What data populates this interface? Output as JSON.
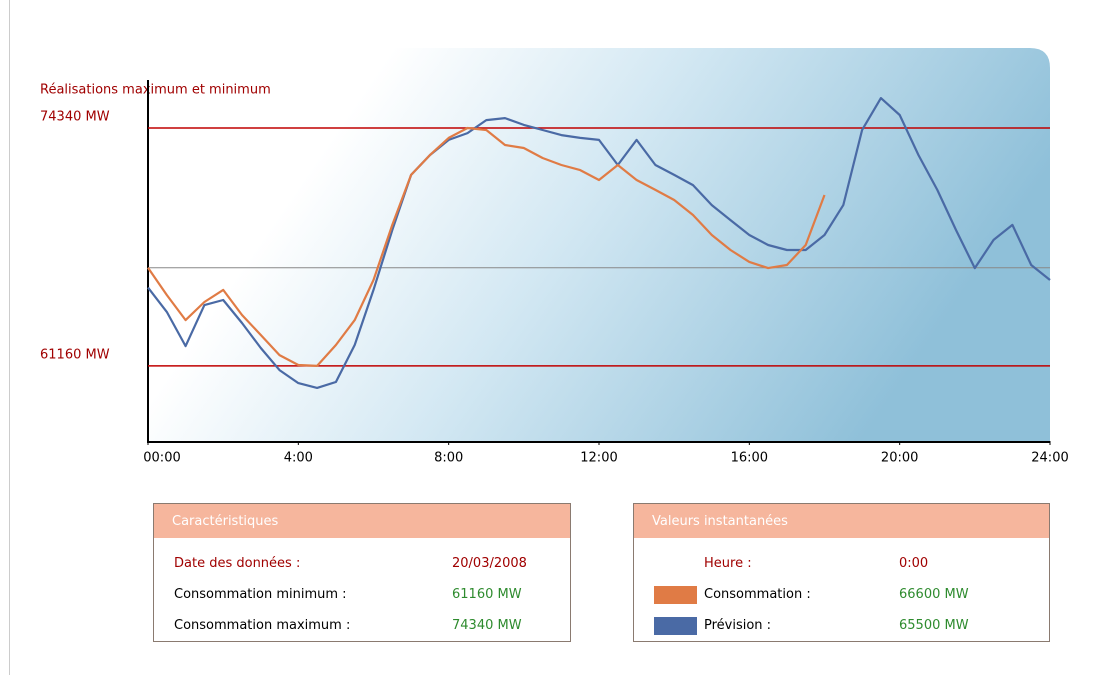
{
  "chart_data": {
    "type": "line",
    "title": "Réalisations maximum et minimum",
    "x": [
      0,
      0.5,
      1,
      1.5,
      2,
      2.5,
      3,
      3.5,
      4,
      4.5,
      5,
      5.5,
      6,
      6.5,
      7,
      7.5,
      8,
      8.5,
      9,
      9.5,
      10,
      10.5,
      11,
      11.5,
      12,
      12.5,
      13,
      13.5,
      14,
      14.5,
      15,
      15.5,
      16,
      16.5,
      17,
      17.5,
      18,
      18.5,
      19,
      19.5,
      20,
      20.5,
      21,
      21.5,
      22,
      22.5,
      23,
      23.5,
      24
    ],
    "xlim": [
      0,
      24
    ],
    "xticks": [
      {
        "value": 0,
        "label": "00:00"
      },
      {
        "value": 4,
        "label": "4:00"
      },
      {
        "value": 8,
        "label": "8:00"
      },
      {
        "value": 12,
        "label": "12:00"
      },
      {
        "value": 16,
        "label": "16:00"
      },
      {
        "value": 20,
        "label": "20:00"
      },
      {
        "value": 24,
        "label": "24:00"
      }
    ],
    "ylim": [
      57000,
      77000
    ],
    "yticks": [
      {
        "value": 61160,
        "label": "61160 MW"
      },
      {
        "value": 74340,
        "label": "74340 MW"
      }
    ],
    "series": [
      {
        "name": "Consommation :",
        "color": "#e07b45",
        "values": [
          66600,
          65090,
          63700,
          64700,
          65370,
          63980,
          62870,
          61760,
          61210,
          61160,
          62320,
          63700,
          65920,
          68970,
          71740,
          72840,
          73790,
          74340,
          74230,
          73400,
          73230,
          72680,
          72290,
          72010,
          71460,
          72290,
          71460,
          70910,
          70350,
          69520,
          68410,
          67580,
          66920,
          66580,
          66750,
          67860,
          70630,
          null,
          null,
          null,
          null,
          null,
          null,
          null,
          null,
          null,
          null,
          null,
          null
        ]
      },
      {
        "name": "Prévision :",
        "color": "#4a6aa5",
        "values": [
          65500,
          64150,
          62260,
          64530,
          64810,
          63540,
          62150,
          60930,
          60210,
          59940,
          60270,
          62320,
          65370,
          68690,
          71740,
          72840,
          73680,
          74060,
          74780,
          74890,
          74510,
          74230,
          73950,
          73790,
          73680,
          72290,
          73680,
          72290,
          71740,
          71180,
          70070,
          69240,
          68410,
          67860,
          67580,
          67580,
          68410,
          70070,
          74230,
          76000,
          75060,
          72840,
          70910,
          68690,
          66580,
          68140,
          68970,
          66750,
          65920
        ]
      }
    ]
  },
  "characteristics": {
    "title": "Caractéristiques",
    "rows": [
      {
        "label": "Date des données :",
        "value": "20/03/2008"
      },
      {
        "label": "Consommation minimum :",
        "value": "61160 MW"
      },
      {
        "label": "Consommation maximum :",
        "value": "74340 MW"
      }
    ]
  },
  "instant": {
    "title": "Valeurs instantanées",
    "hour_label": "Heure :",
    "hour": "0:00",
    "values": [
      "66600 MW",
      "65500 MW"
    ]
  }
}
